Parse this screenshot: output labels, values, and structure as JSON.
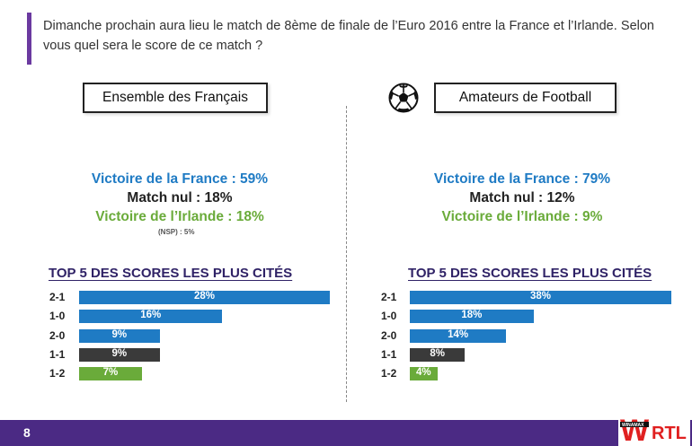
{
  "question": "Dimanche prochain aura lieu le match de 8ème de finale de l’Euro 2016 entre la France et l’Irlande. Selon vous quel sera le score de ce match ?",
  "panels": [
    {
      "title": "Ensemble des Français",
      "results": {
        "france": "Victoire de la France : 59%",
        "nul": "Match nul : 18%",
        "irlande": "Victoire de l’Irlande : 18%",
        "nsp": "(NSP) : 5%"
      },
      "top_title": "TOP 5 DES SCORES LES PLUS CITÉS"
    },
    {
      "title": "Amateurs de Football",
      "results": {
        "france": "Victoire de la France : 79%",
        "nul": "Match nul : 12%",
        "irlande": "Victoire de l’Irlande : 9%"
      },
      "top_title": "TOP 5 DES SCORES LES PLUS CITÉS"
    }
  ],
  "colors": {
    "blue": "#1f7bc4",
    "dark": "#3a3a3a",
    "green": "#6aab3a",
    "footer": "#4b2a84"
  },
  "icons": {
    "ball": "soccer-ball-icon"
  },
  "footer": {
    "page_number": "8"
  },
  "logo": {
    "text_w": "W",
    "text_rtl": "RTL",
    "text_winamax": "WINAMAX"
  },
  "chart_data": [
    {
      "type": "bar",
      "orientation": "horizontal",
      "title": "TOP 5 DES SCORES LES PLUS CITÉS",
      "categories": [
        "2-1",
        "1-0",
        "2-0",
        "1-1",
        "1-2"
      ],
      "values": [
        28,
        16,
        9,
        9,
        7
      ],
      "labels": [
        "28%",
        "16%",
        "9%",
        "9%",
        "7%"
      ],
      "bar_colors": [
        "#1f7bc4",
        "#1f7bc4",
        "#1f7bc4",
        "#3a3a3a",
        "#6aab3a"
      ]
    },
    {
      "type": "bar",
      "orientation": "horizontal",
      "title": "TOP 5 DES SCORES LES PLUS CITÉS",
      "categories": [
        "2-1",
        "1-0",
        "2-0",
        "1-1",
        "1-2"
      ],
      "values": [
        38,
        18,
        14,
        8,
        4
      ],
      "labels": [
        "38%",
        "18%",
        "14%",
        "8%",
        "4%"
      ],
      "bar_colors": [
        "#1f7bc4",
        "#1f7bc4",
        "#1f7bc4",
        "#3a3a3a",
        "#6aab3a"
      ]
    }
  ]
}
